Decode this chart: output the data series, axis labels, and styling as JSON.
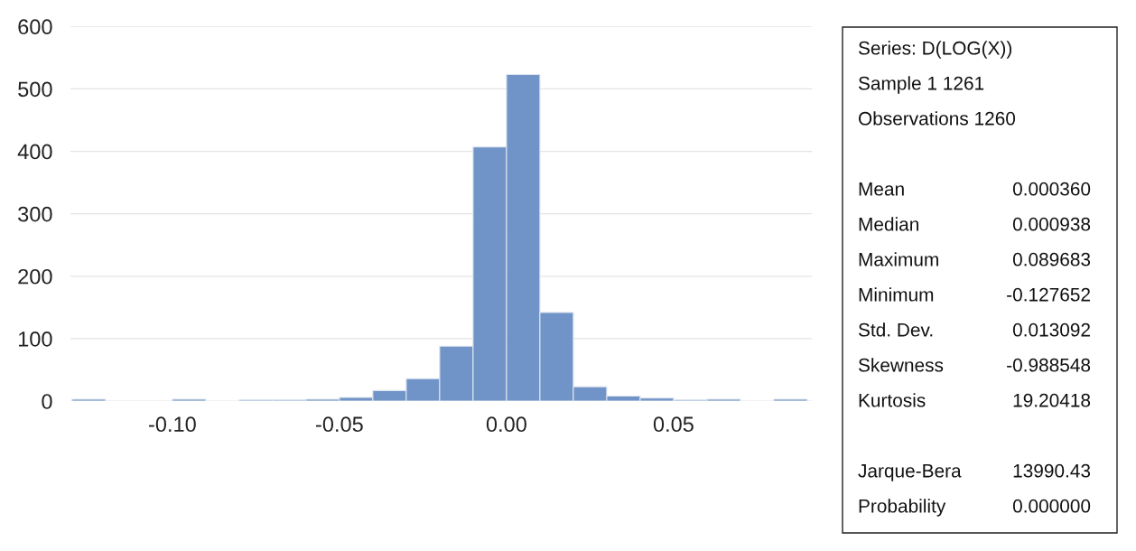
{
  "chart_data": {
    "type": "histogram",
    "bins": [
      -0.13,
      -0.12,
      -0.11,
      -0.1,
      -0.09,
      -0.08,
      -0.07,
      -0.06,
      -0.05,
      -0.04,
      -0.03,
      -0.02,
      -0.01,
      0.0,
      0.01,
      0.02,
      0.03,
      0.04,
      0.05,
      0.06,
      0.07,
      0.08,
      0.09
    ],
    "values": [
      3,
      0,
      0,
      3,
      0,
      2,
      2,
      3,
      6,
      17,
      36,
      88,
      407,
      523,
      142,
      23,
      8,
      5,
      2,
      3,
      0,
      3
    ],
    "color": "#7094c8",
    "xlim": [
      -0.1305,
      0.0915
    ],
    "xticks": [
      {
        "value": -0.1,
        "label": "-0.10"
      },
      {
        "value": -0.05,
        "label": "-0.05"
      },
      {
        "value": 0,
        "label": "0.00"
      },
      {
        "value": 0.05,
        "label": "0.05"
      }
    ],
    "ylim": [
      0,
      600
    ],
    "yticks": [
      0,
      100,
      200,
      300,
      400,
      500,
      600
    ],
    "grid": "y",
    "annotations": [
      "Series: D(LOG(X))",
      "Sample 1 1261",
      "Observations 1260",
      "Mean",
      "0.000360",
      "Median",
      "0.000938",
      "Maximum",
      "0.089683",
      "Minimum",
      "-0.127652",
      "Std. Dev.",
      "0.013092",
      "Skewness",
      "-0.988548",
      "Kurtosis",
      "19.20418",
      "Jarque-Bera",
      "13990.43",
      "Probability",
      "0.000000"
    ]
  }
}
